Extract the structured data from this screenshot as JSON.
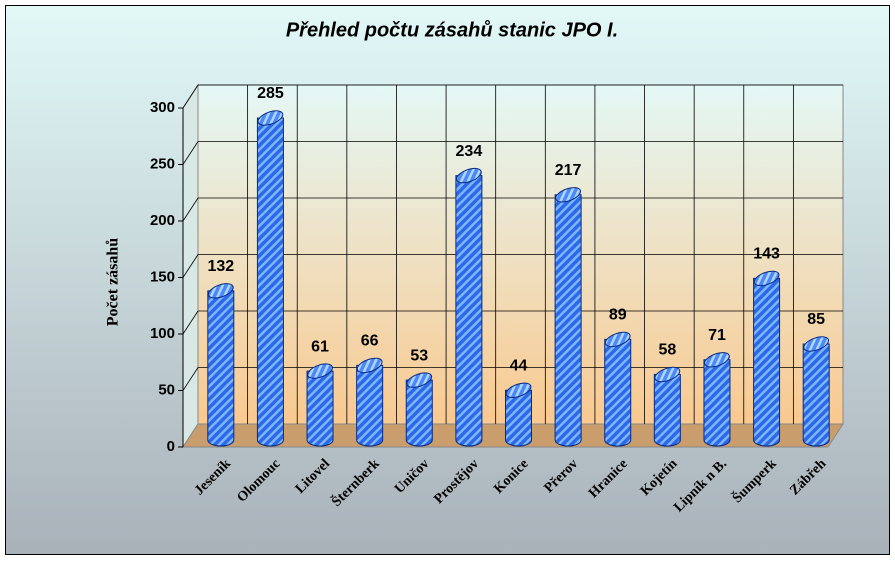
{
  "chart_data": {
    "type": "bar",
    "title": "Přehled počtu zásahů  stanic JPO I.",
    "y_label": "Počet zásahů",
    "categories": [
      "Jeseník",
      "Olomouc",
      "Litovel",
      "Šternberk",
      "Uničov",
      "Prostějov",
      "Konice",
      "Přerov",
      "Hranice",
      "Kojetín",
      "Lipník n B.",
      "Šumperk",
      "Zábřeh"
    ],
    "values": [
      132,
      285,
      61,
      66,
      53,
      234,
      44,
      217,
      89,
      58,
      71,
      143,
      85
    ],
    "color": "#2a6ae8",
    "ylim": [
      0,
      300
    ],
    "yticks": [
      0,
      50,
      100,
      150,
      200,
      250,
      300
    ],
    "grid": true
  }
}
